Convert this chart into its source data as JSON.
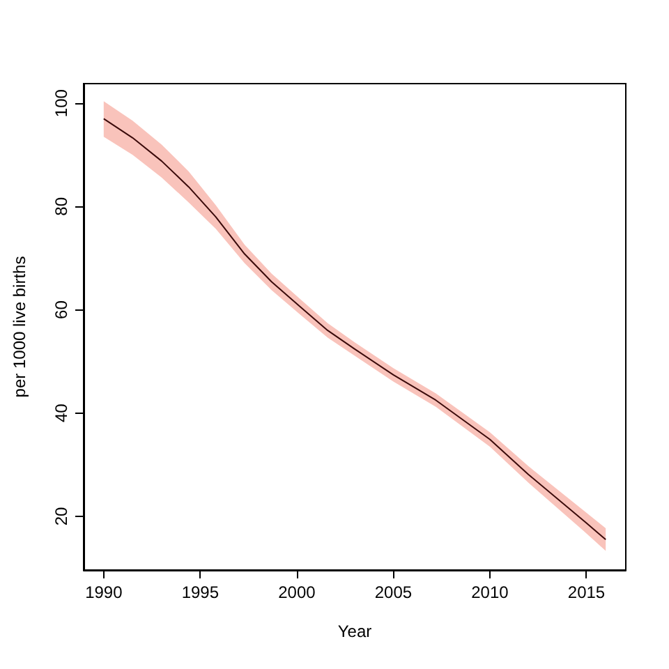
{
  "chart_data": {
    "type": "line",
    "xlabel": "Year",
    "ylabel": "per 1000 live births",
    "x": [
      1990,
      1991.5,
      1993,
      1994.4,
      1995.8,
      1997.3,
      1998.7,
      2000.2,
      2001.6,
      2003,
      2005,
      2007.2,
      2010,
      2012,
      2015,
      2016
    ],
    "series": [
      {
        "color": "#3a0a0a",
        "values": [
          97.0,
          93.3,
          88.8,
          83.8,
          78.0,
          70.8,
          65.4,
          60.5,
          56.0,
          52.4,
          47.4,
          42.5,
          34.9,
          28.1,
          18.7,
          15.5
        ],
        "lower": [
          93.5,
          90.0,
          85.6,
          80.8,
          75.7,
          69.0,
          63.8,
          59.0,
          54.6,
          51.1,
          46.1,
          41.2,
          33.5,
          26.5,
          16.7,
          13.3
        ],
        "upper": [
          100.4,
          96.6,
          92.0,
          86.8,
          80.3,
          72.6,
          67.0,
          62.0,
          57.4,
          53.7,
          48.7,
          43.8,
          36.3,
          29.7,
          20.7,
          17.7
        ]
      }
    ],
    "xlim": [
      1988.96,
      2017.04
    ],
    "xticks": [
      1990,
      1995,
      2000,
      2005,
      2010,
      2015
    ],
    "ylim": [
      9.6,
      103.8
    ],
    "yticks": [
      20,
      40,
      60,
      80,
      100
    ],
    "grid": false,
    "marker": "none",
    "line_style": "solid"
  }
}
